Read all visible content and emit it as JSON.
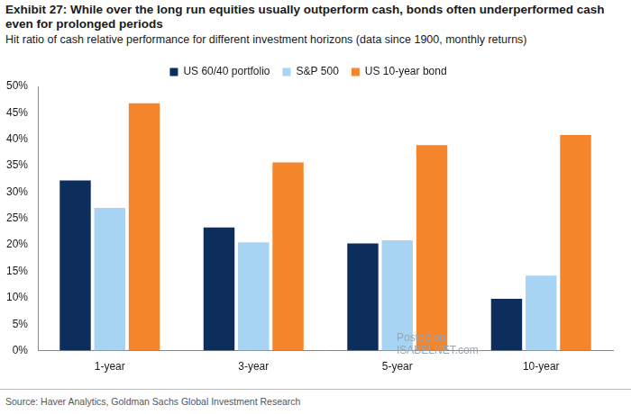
{
  "chart_data": {
    "type": "bar",
    "title": "Exhibit 27: While over the long run equities usually outperform cash, bonds often underperformed cash even for prolonged periods",
    "subtitle": "Hit ratio of cash relative performance for different investment horizons (data since 1900, monthly returns)",
    "source": "Source: Haver Analytics, Goldman Sachs Global Investment Research",
    "annotations": [
      "Posted on",
      "ISABELNET.com"
    ],
    "categories": [
      "1-year",
      "3-year",
      "5-year",
      "10-year"
    ],
    "series": [
      {
        "name": "US 60/40 portfolio",
        "color": "#0d2e5c",
        "values": [
          32.2,
          23.3,
          20.3,
          9.8
        ]
      },
      {
        "name": "S&P 500",
        "color": "#a8d4f4",
        "values": [
          27.0,
          20.5,
          20.9,
          14.2
        ]
      },
      {
        "name": "US 10-year bond",
        "color": "#f5852b",
        "values": [
          46.8,
          35.6,
          38.9,
          40.8
        ]
      }
    ],
    "ylim": [
      0,
      50
    ],
    "yticks": [
      {
        "value": 0,
        "label": "0%"
      },
      {
        "value": 5,
        "label": "5%"
      },
      {
        "value": 10,
        "label": "10%"
      },
      {
        "value": 15,
        "label": "15%"
      },
      {
        "value": 20,
        "label": "20%"
      },
      {
        "value": 25,
        "label": "25%"
      },
      {
        "value": 30,
        "label": "30%"
      },
      {
        "value": 35,
        "label": "35%"
      },
      {
        "value": 40,
        "label": "40%"
      },
      {
        "value": 45,
        "label": "45%"
      },
      {
        "value": 50,
        "label": "50%"
      }
    ],
    "grid": false,
    "legend": "top"
  }
}
